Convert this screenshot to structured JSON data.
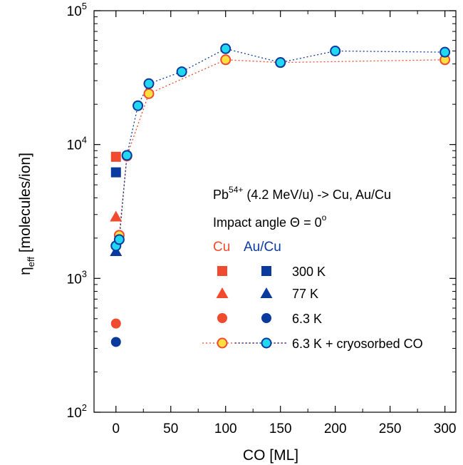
{
  "chart_data": {
    "type": "scatter",
    "title": "",
    "xlabel": "CO [ML]",
    "ylabel": {
      "base": "η",
      "sub": "eff",
      "rest": " [molecules/ion]"
    },
    "xlim": [
      -20,
      310
    ],
    "ylim": [
      100,
      100000
    ],
    "yscale": "log",
    "x_ticks": [
      0,
      50,
      100,
      150,
      200,
      250,
      300
    ],
    "y_ticks": [
      {
        "value": 100,
        "base": "10",
        "exp": "2"
      },
      {
        "value": 1000,
        "base": "10",
        "exp": "3"
      },
      {
        "value": 10000,
        "base": "10",
        "exp": "4"
      },
      {
        "value": 100000,
        "base": "10",
        "exp": "5"
      }
    ],
    "grid": false,
    "colors": {
      "cu": "#f04a2f",
      "aucu": "#0a3a9e",
      "cryo_cu_fill": "#ffe040",
      "cryo_aucu_fill": "#22d8f0"
    },
    "series": [
      {
        "name": "Cu 300 K",
        "marker": "square",
        "color": "#f04a2f",
        "x": [
          0
        ],
        "y": [
          8100
        ]
      },
      {
        "name": "Au/Cu 300 K",
        "marker": "square",
        "color": "#0a3a9e",
        "x": [
          0
        ],
        "y": [
          6200
        ]
      },
      {
        "name": "Cu 77 K",
        "marker": "triangle",
        "color": "#f04a2f",
        "x": [
          0
        ],
        "y": [
          2900
        ]
      },
      {
        "name": "Au/Cu 77 K",
        "marker": "triangle",
        "color": "#0a3a9e",
        "x": [
          0
        ],
        "y": [
          1600
        ]
      },
      {
        "name": "Cu 6.3 K",
        "marker": "circle",
        "color": "#f04a2f",
        "x": [
          0
        ],
        "y": [
          460
        ]
      },
      {
        "name": "Au/Cu 6.3 K",
        "marker": "circle",
        "color": "#0a3a9e",
        "x": [
          0
        ],
        "y": [
          335
        ]
      },
      {
        "name": "Cu 6.3 K + cryosorbed CO",
        "marker": "open-circle",
        "color": "#f04a2f",
        "fill": "#ffe040",
        "line": "dotted",
        "x": [
          3,
          10,
          30,
          100,
          150,
          300
        ],
        "y": [
          2100,
          8200,
          24000,
          43000,
          41000,
          43000
        ]
      },
      {
        "name": "Au/Cu 6.3 K + cryosorbed CO",
        "marker": "open-circle",
        "color": "#0a3a9e",
        "fill": "#22d8f0",
        "line": "dotted",
        "x": [
          0,
          3,
          10,
          20,
          30,
          60,
          100,
          150,
          200,
          300
        ],
        "y": [
          1750,
          1950,
          8300,
          19500,
          28500,
          35000,
          52000,
          41000,
          50000,
          49000
        ]
      }
    ],
    "legend": {
      "position": "center-right",
      "line1": {
        "pre": "Pb",
        "sup": "54+",
        "post": " (4.2 MeV/u) -> Cu, Au/Cu"
      },
      "line2": {
        "text": "Impact angle Θ = 0",
        "sup": "o"
      },
      "header_cu": "Cu",
      "header_aucu": "Au/Cu",
      "rows": [
        {
          "marker": "square",
          "label": "300 K"
        },
        {
          "marker": "triangle",
          "label": "77 K"
        },
        {
          "marker": "circle",
          "label": "6.3 K"
        },
        {
          "marker": "open-circle",
          "label": "6.3 K + cryosorbed CO"
        }
      ]
    }
  }
}
